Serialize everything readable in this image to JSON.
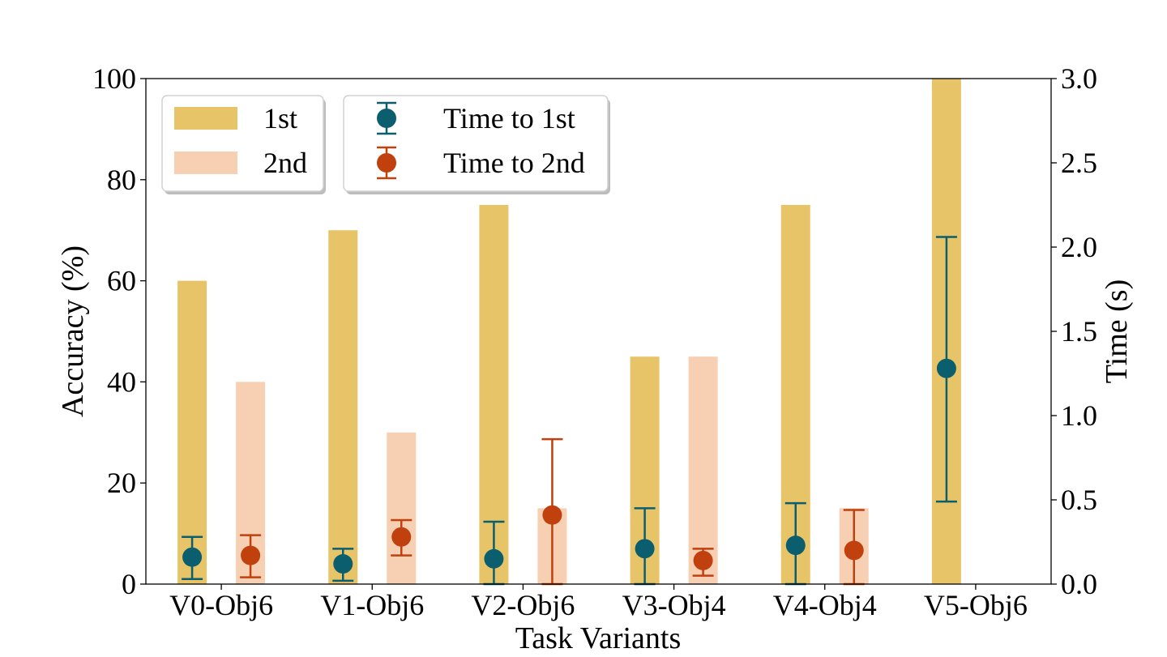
{
  "chart_data": {
    "type": "bar",
    "title": "",
    "xlabel": "Task Variants",
    "ylabel": "Accuracy (%)",
    "y2label": "Time (s)",
    "ylim": [
      0,
      100
    ],
    "y2lim": [
      0,
      3.0
    ],
    "yticks": [
      "0",
      "20",
      "40",
      "60",
      "80",
      "100"
    ],
    "y2ticks": [
      "0.0",
      "0.5",
      "1.0",
      "1.5",
      "2.0",
      "2.5",
      "3.0"
    ],
    "categories": [
      "V0-Obj6",
      "V1-Obj6",
      "V2-Obj6",
      "V3-Obj4",
      "V4-Obj4",
      "V5-Obj6"
    ],
    "bar_series": [
      {
        "name": "1st",
        "color": "#e8c468",
        "values": [
          60,
          70,
          75,
          45,
          75,
          100
        ]
      },
      {
        "name": "2nd",
        "color": "#f7cfb2",
        "values": [
          40,
          30,
          15,
          45,
          15,
          0
        ]
      }
    ],
    "time_series": [
      {
        "name": "Time to 1st",
        "color": "#0b5e6e",
        "values": [
          0.16,
          0.12,
          0.15,
          0.21,
          0.23,
          1.28
        ],
        "lower": [
          0.03,
          0.02,
          0.0,
          0.0,
          0.0,
          0.49
        ],
        "upper": [
          0.28,
          0.21,
          0.37,
          0.45,
          0.48,
          2.06
        ]
      },
      {
        "name": "Time to 2nd",
        "color": "#c0410e",
        "values": [
          0.17,
          0.28,
          0.41,
          0.14,
          0.2,
          null
        ],
        "lower": [
          0.04,
          0.17,
          0.0,
          0.05,
          0.0,
          null
        ],
        "upper": [
          0.29,
          0.38,
          0.86,
          0.21,
          0.44,
          null
        ]
      }
    ],
    "legend": {
      "bars": [
        "1st",
        "2nd"
      ],
      "markers": [
        "Time to 1st",
        "Time to 2nd"
      ],
      "placement": "top-left"
    }
  }
}
